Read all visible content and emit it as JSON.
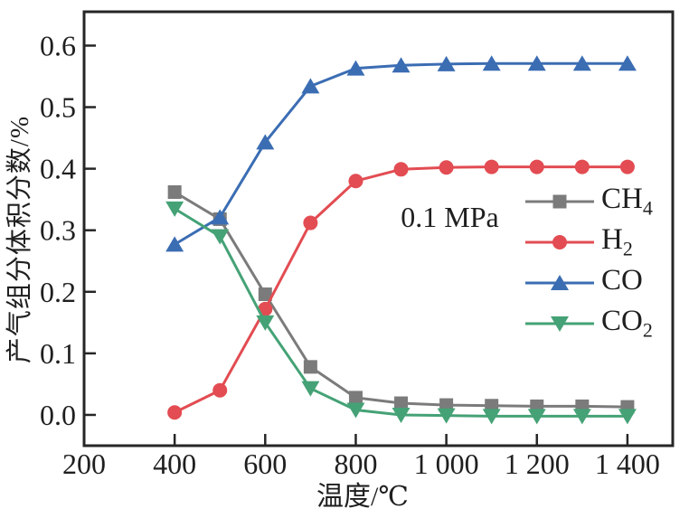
{
  "figure": {
    "background": "#ffffff",
    "text_color": "#1f1f1f",
    "axis_color": "#262626"
  },
  "chart_data": {
    "type": "line",
    "title": "",
    "xlabel": "温度/℃",
    "ylabel": "产气组分体积分数/%",
    "annotation": "0.1 MPa",
    "grid": false,
    "legend_position": "inside-right",
    "xlim": [
      200,
      1500
    ],
    "ylim": [
      -0.05,
      0.655
    ],
    "xticks": {
      "values": [
        200,
        400,
        600,
        800,
        1000,
        1200,
        1400
      ],
      "labels": [
        "200",
        "400",
        "600",
        "800",
        "1 000",
        "1 200",
        "1 400"
      ]
    },
    "yticks": {
      "values": [
        0.0,
        0.1,
        0.2,
        0.3,
        0.4,
        0.5,
        0.6
      ],
      "labels": [
        "0.0",
        "0.1",
        "0.2",
        "0.3",
        "0.4",
        "0.5",
        "0.6"
      ]
    },
    "x": [
      400,
      500,
      600,
      700,
      800,
      900,
      1000,
      1100,
      1200,
      1300,
      1400
    ],
    "series": [
      {
        "name": "CH4",
        "label": "CH",
        "label_sub": "4",
        "marker": "square",
        "color": "#7b7b7b",
        "values": [
          0.362,
          0.318,
          0.196,
          0.078,
          0.028,
          0.019,
          0.016,
          0.015,
          0.014,
          0.014,
          0.013
        ]
      },
      {
        "name": "H2",
        "label": "H",
        "label_sub": "2",
        "marker": "circle",
        "color": "#e24c52",
        "values": [
          0.004,
          0.04,
          0.172,
          0.312,
          0.38,
          0.399,
          0.402,
          0.403,
          0.403,
          0.403,
          0.403
        ]
      },
      {
        "name": "CO",
        "label": "CO",
        "label_sub": "",
        "marker": "triangle-up",
        "color": "#3b6db3",
        "values": [
          0.277,
          0.321,
          0.443,
          0.534,
          0.563,
          0.568,
          0.57,
          0.571,
          0.571,
          0.571,
          0.571
        ]
      },
      {
        "name": "CO2",
        "label": "CO",
        "label_sub": "2",
        "marker": "triangle-down",
        "color": "#45a276",
        "values": [
          0.335,
          0.29,
          0.15,
          0.043,
          0.008,
          0.0,
          -0.001,
          -0.002,
          -0.002,
          -0.002,
          -0.002
        ]
      }
    ]
  }
}
